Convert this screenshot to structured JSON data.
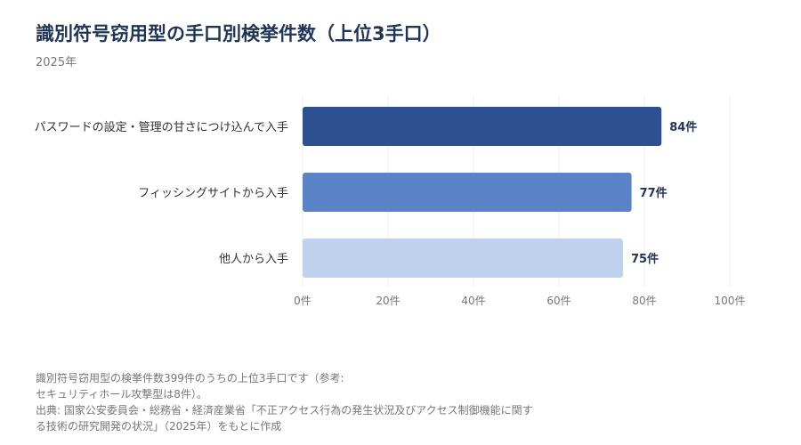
{
  "title": "識別符号窃用型の手口別検挙件数（上位3手口）",
  "subtitle": "2025年",
  "footnote": {
    "lines": [
      "識別符号窃用型の検挙件数399件のうちの上位3手口です（参考:",
      "セキュリティホール攻撃型は8件）。",
      "出典: 国家公安委員会・総務省・経済産業省「不正アクセス行為の発生状況及びアクセス制御機能に関す",
      "る技術の研究開発の状況」（2025年）をもとに作成"
    ]
  },
  "chart_data": {
    "type": "bar",
    "orientation": "horizontal",
    "categories": [
      "パスワードの設定・管理の甘さにつけ込んで入手",
      "フィッシングサイトから入手",
      "他人から入手"
    ],
    "values": [
      84,
      77,
      75
    ],
    "value_labels": [
      "84件",
      "77件",
      "75件"
    ],
    "bar_colors": [
      "#2e5090",
      "#5b84c8",
      "#bed2ee"
    ],
    "value_label_color": "#1f3558",
    "xlim": [
      0,
      100
    ],
    "x_ticks": [
      0,
      20,
      40,
      60,
      80,
      100
    ],
    "x_tick_labels": [
      "0件",
      "20件",
      "40件",
      "60件",
      "80件",
      "100件"
    ],
    "grid": true,
    "legend": "none"
  }
}
